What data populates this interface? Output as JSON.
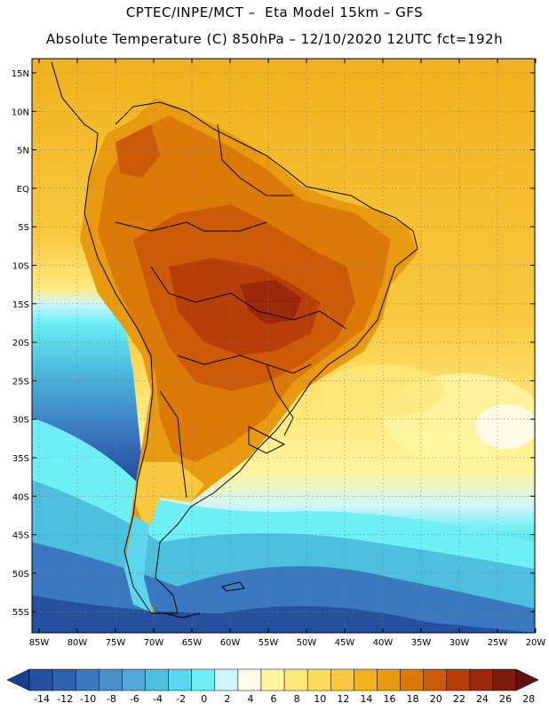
{
  "header": {
    "line1": "CPTEC/INPE/MCT –  Eta Model 15km – GFS",
    "line2": "Absolute Temperature (C) 850hPa – 12/10/2020 12UTC fct=192h"
  },
  "map": {
    "lat_labels": [
      "15N",
      "10N",
      "5N",
      "EQ",
      "5S",
      "10S",
      "15S",
      "20S",
      "25S",
      "30S",
      "35S",
      "40S",
      "45S",
      "50S",
      "55S"
    ],
    "lon_labels": [
      "85W",
      "80W",
      "75W",
      "70W",
      "65W",
      "60W",
      "55W",
      "50W",
      "45W",
      "40W",
      "35W",
      "30W",
      "25W",
      "20W"
    ],
    "lat_range": [
      15,
      -57.5
    ],
    "lon_range": [
      -85,
      -20
    ],
    "grid": "dotted"
  },
  "colorbar": {
    "labels": [
      "-14",
      "-12",
      "-10",
      "-8",
      "-6",
      "-4",
      "-2",
      "0",
      "2",
      "4",
      "6",
      "8",
      "10",
      "12",
      "14",
      "16",
      "18",
      "20",
      "22",
      "24",
      "26",
      "28"
    ],
    "colors": [
      "#1a3f8f",
      "#24509e",
      "#2e62b0",
      "#3a78c0",
      "#4a90cc",
      "#55a8d8",
      "#4dc0e0",
      "#5cd6ec",
      "#6ef0f4",
      "#ccf6fa",
      "#fffbe6",
      "#fff5a0",
      "#ffe97a",
      "#ffdb5c",
      "#f8c83e",
      "#f0b21e",
      "#e89a10",
      "#dc7a08",
      "#cc5a06",
      "#b83e08",
      "#9c280c",
      "#7e1a10",
      "#620e14"
    ]
  }
}
